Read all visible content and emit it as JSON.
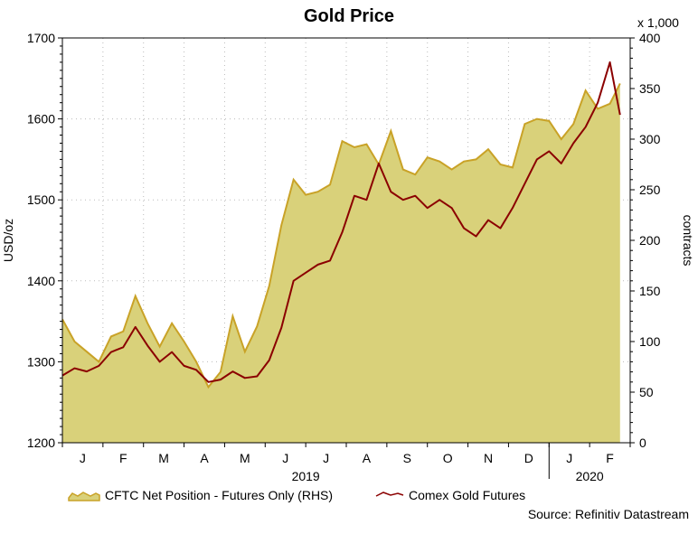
{
  "chart_data": {
    "type": "line",
    "title": "Gold Price",
    "ylabel": "USD/oz",
    "ylabel_right": "contracts",
    "right_unit_note": "x 1,000",
    "ylim": [
      1200,
      1700
    ],
    "y_ticks": [
      "1200",
      "1300",
      "1400",
      "1500",
      "1600",
      "1700"
    ],
    "ylim_right": [
      0,
      400
    ],
    "y2_ticks": [
      "0",
      "50",
      "100",
      "150",
      "200",
      "250",
      "300",
      "350",
      "400"
    ],
    "month_ticks": [
      "J",
      "F",
      "M",
      "A",
      "M",
      "J",
      "J",
      "A",
      "S",
      "O",
      "N",
      "D",
      "J",
      "F"
    ],
    "year_labels": [
      "2019",
      "2020"
    ],
    "source": "Source: Refinitiv Datastream",
    "series": [
      {
        "name": "CFTC Net Position - Futures Only (RHS)",
        "type": "area",
        "axis": "right",
        "color": "#c9a227",
        "fill": "#d9d17a",
        "x": [
          0,
          0.3,
          0.6,
          0.9,
          1.2,
          1.5,
          1.8,
          2.1,
          2.4,
          2.7,
          3.0,
          3.3,
          3.6,
          3.9,
          4.2,
          4.5,
          4.8,
          5.1,
          5.4,
          5.7,
          6.0,
          6.3,
          6.6,
          6.9,
          7.2,
          7.5,
          7.8,
          8.1,
          8.4,
          8.7,
          9.0,
          9.3,
          9.6,
          9.9,
          10.2,
          10.5,
          10.8,
          11.1,
          11.4,
          11.7,
          12.0,
          12.3,
          12.6,
          12.9,
          13.2,
          13.5,
          13.75
        ],
        "values": [
          122,
          100,
          90,
          80,
          105,
          110,
          145,
          118,
          95,
          118,
          100,
          80,
          55,
          70,
          125,
          90,
          115,
          155,
          215,
          260,
          245,
          248,
          255,
          298,
          292,
          295,
          275,
          308,
          270,
          265,
          282,
          278,
          270,
          278,
          280,
          290,
          275,
          272,
          315,
          320,
          318,
          300,
          315,
          348,
          330,
          335,
          355
        ],
        "markers": []
      },
      {
        "name": "Comex Gold Futures",
        "type": "line",
        "axis": "left",
        "color": "#8b0000",
        "x": [
          0,
          0.3,
          0.6,
          0.9,
          1.2,
          1.5,
          1.8,
          2.1,
          2.4,
          2.7,
          3.0,
          3.3,
          3.6,
          3.9,
          4.2,
          4.5,
          4.8,
          5.1,
          5.4,
          5.7,
          6.0,
          6.3,
          6.6,
          6.9,
          7.2,
          7.5,
          7.8,
          8.1,
          8.4,
          8.7,
          9.0,
          9.3,
          9.6,
          9.9,
          10.2,
          10.5,
          10.8,
          11.1,
          11.4,
          11.7,
          12.0,
          12.3,
          12.6,
          12.9,
          13.2,
          13.5,
          13.75
        ],
        "values": [
          1283,
          1292,
          1288,
          1295,
          1312,
          1318,
          1343,
          1320,
          1300,
          1312,
          1295,
          1290,
          1275,
          1278,
          1288,
          1280,
          1282,
          1302,
          1342,
          1400,
          1410,
          1420,
          1425,
          1460,
          1505,
          1500,
          1545,
          1510,
          1500,
          1505,
          1490,
          1500,
          1490,
          1465,
          1455,
          1475,
          1465,
          1490,
          1520,
          1550,
          1560,
          1545,
          1570,
          1590,
          1620,
          1670,
          1605
        ],
        "markers": []
      }
    ]
  }
}
